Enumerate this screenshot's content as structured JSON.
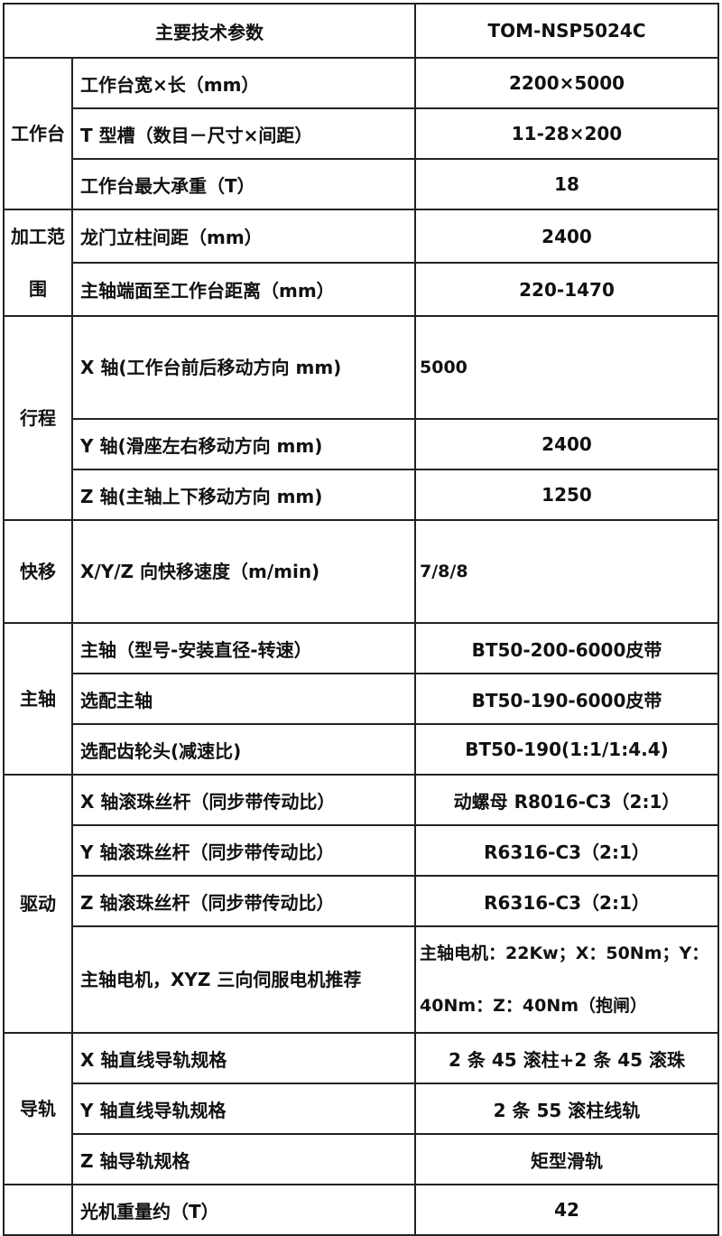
{
  "header": {
    "title": "主要技术参数",
    "model": "TOM-NSP5024C"
  },
  "groups": [
    {
      "label": "工作台",
      "rows": [
        {
          "name": "工作台宽×长（mm）",
          "value": "2200×5000"
        },
        {
          "name": "T 型槽（数目－尺寸×间距）",
          "value": "11-28×200"
        },
        {
          "name": "工作台最大承重（T）",
          "value": "18"
        }
      ]
    },
    {
      "label": "加工范围",
      "rows": [
        {
          "name": "龙门立柱间距（mm）",
          "value": "2400"
        },
        {
          "name": "主轴端面至工作台距离（mm）",
          "value": "220-1470"
        }
      ]
    },
    {
      "label": "行程",
      "rows": [
        {
          "name": "X 轴(工作台前后移动方向 mm)",
          "value": "5000"
        },
        {
          "name": "Y 轴(滑座左右移动方向 mm)",
          "value": "2400"
        },
        {
          "name": "Z 轴(主轴上下移动方向 mm)",
          "value": "1250"
        }
      ]
    },
    {
      "label": "快移",
      "rows": [
        {
          "name": "X/Y/Z 向快移速度（m/min)",
          "value": "7/8/8"
        }
      ]
    },
    {
      "label": "主轴",
      "rows": [
        {
          "name": "主轴（型号-安装直径-转速）",
          "value": "BT50-200-6000皮带"
        },
        {
          "name": "选配主轴",
          "value": "BT50-190-6000皮带"
        },
        {
          "name": "选配齿轮头(减速比)",
          "value": "BT50-190(1:1/1:4.4)"
        }
      ]
    },
    {
      "label": "驱动",
      "rows": [
        {
          "name": "X 轴滚珠丝杆（同步带传动比）",
          "value": "动螺母 R8016-C3（2:1）"
        },
        {
          "name": "Y 轴滚珠丝杆（同步带传动比）",
          "value": "R6316-C3（2:1）"
        },
        {
          "name": "Z 轴滚珠丝杆（同步带传动比）",
          "value": "R6316-C3（2:1）"
        },
        {
          "name": "主轴电机，XYZ 三向伺服电机推荐",
          "value": "主轴电机：22Kw；X：50Nm；Y：40Nm：Z：40Nm（抱闸）"
        }
      ]
    },
    {
      "label": "导轨",
      "rows": [
        {
          "name": "X 轴直线导轨规格",
          "value": "2 条 45 滚柱+2 条 45 滚珠"
        },
        {
          "name": "Y 轴直线导轨规格",
          "value": "2 条 55 滚柱线轨"
        },
        {
          "name": "Z 轴导轨规格",
          "value": "矩型滑轨"
        }
      ]
    },
    {
      "label": "",
      "rows": [
        {
          "name": "光机重量约（T）",
          "value": "42"
        }
      ]
    }
  ]
}
